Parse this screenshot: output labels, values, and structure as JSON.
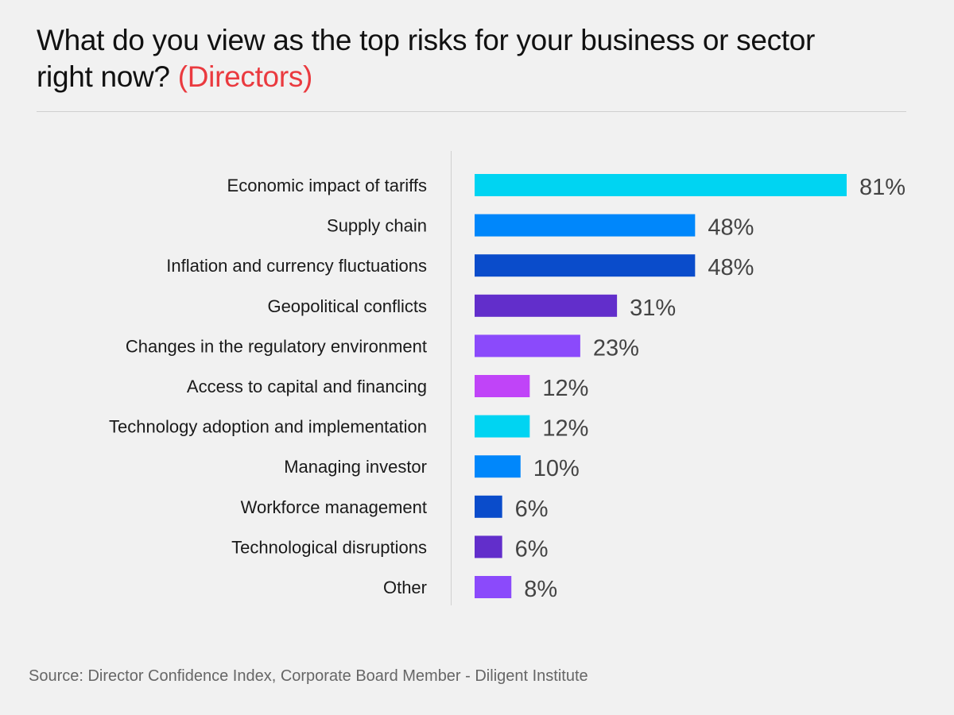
{
  "title": {
    "main": "What do you view as the top risks for your business or sector right now?",
    "highlight": "(Directors)",
    "highlight_color": "#ea3a3f"
  },
  "chart_data": {
    "type": "bar",
    "orientation": "horizontal",
    "categories": [
      "Economic impact of tariffs",
      "Supply chain",
      "Inflation and currency fluctuations",
      "Geopolitical conflicts",
      "Changes in the regulatory environment",
      "Access to capital and financing",
      "Technology adoption and implementation",
      "Managing investor",
      "Workforce management",
      "Technological disruptions",
      "Other"
    ],
    "values": [
      81,
      48,
      48,
      31,
      23,
      12,
      12,
      10,
      6,
      6,
      8
    ],
    "value_labels": [
      "81%",
      "48%",
      "48%",
      "31%",
      "23%",
      "12%",
      "12%",
      "10%",
      "6%",
      "6%",
      "8%"
    ],
    "colors": [
      "#00d4f2",
      "#0087fb",
      "#0a4ccb",
      "#622ecb",
      "#8b4afb",
      "#c044f8",
      "#00d4f2",
      "#0087fb",
      "#0a4ccb",
      "#622ecb",
      "#8b4afb"
    ],
    "unit": "%",
    "xlim": [
      0,
      81
    ],
    "grid": false,
    "legend": "none"
  },
  "source": "Source: Director Confidence Index, Corporate Board Member - Diligent Institute"
}
